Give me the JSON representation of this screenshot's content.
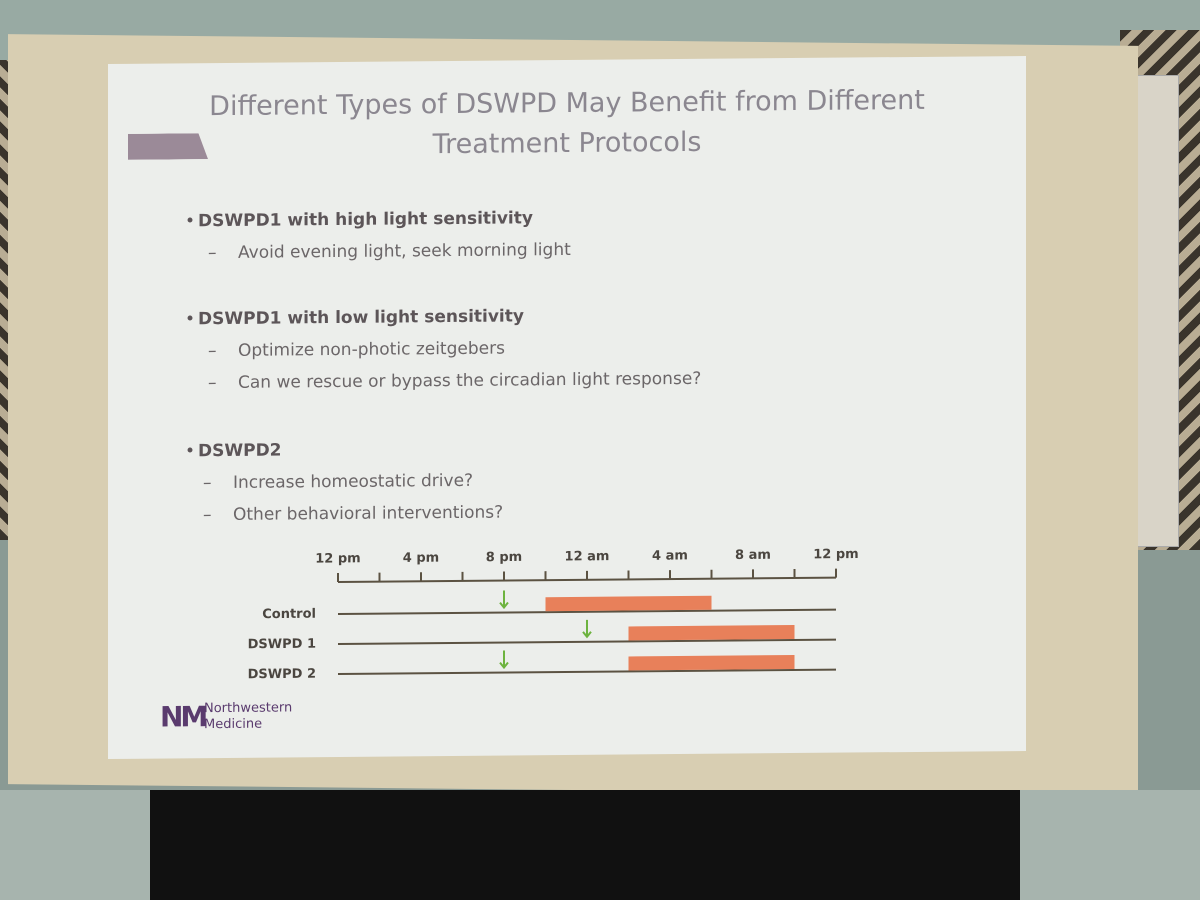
{
  "slide": {
    "title_line1": "Different Types of DSWPD May Benefit from Different",
    "title_line2": "Treatment Protocols",
    "bullets": [
      {
        "text": "DSWPD1 with high light sensitivity",
        "subs": [
          "Avoid evening light, seek morning light"
        ]
      },
      {
        "text": "DSWPD1 with low light sensitivity",
        "subs": [
          "Optimize non-photic zeitgebers",
          "Can we rescue or bypass the circadian light response?"
        ]
      },
      {
        "text": "DSWPD2",
        "subs": [
          "Increase homeostatic drive?",
          "Other behavioral interventions?"
        ]
      }
    ],
    "logo": {
      "mark": "NM",
      "line1": "Northwestern",
      "line2": "Medicine"
    }
  },
  "chart": {
    "type": "timeline",
    "xlim": [
      0,
      24
    ],
    "xticks": [
      {
        "value": 0,
        "label": "12 pm"
      },
      {
        "value": 4,
        "label": "4 pm"
      },
      {
        "value": 8,
        "label": "8 pm"
      },
      {
        "value": 12,
        "label": "12 am"
      },
      {
        "value": 16,
        "label": "4 am"
      },
      {
        "value": 20,
        "label": "8 am"
      },
      {
        "value": 24,
        "label": "12 pm"
      }
    ],
    "minor_xticks": [
      2,
      6,
      10,
      14,
      18,
      22
    ],
    "bar_color": "#e8805a",
    "arrow_color": "#6db33f",
    "rows": [
      {
        "label": "Control",
        "sleep_start": 10,
        "sleep_end": 18,
        "arrow": 8
      },
      {
        "label": "DSWPD 1",
        "sleep_start": 14,
        "sleep_end": 22,
        "arrow": 12
      },
      {
        "label": "DSWPD 2",
        "sleep_start": 14,
        "sleep_end": 22,
        "arrow": 8
      }
    ]
  }
}
